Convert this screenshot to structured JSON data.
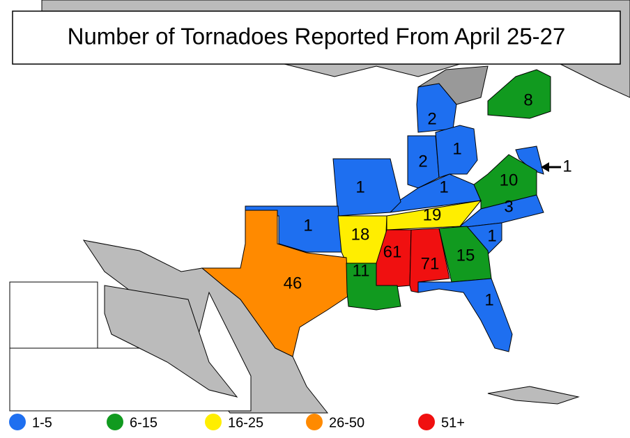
{
  "title": "Number of Tornadoes Reported From April 25-27",
  "states": [
    {
      "label": "2",
      "color": "#1e6ff0"
    },
    {
      "label": "8",
      "color": "#119a1f"
    },
    {
      "label": "2",
      "color": "#1e6ff0"
    },
    {
      "label": "1",
      "color": "#1e6ff0"
    },
    {
      "label": "1",
      "color": "#1e6ff0"
    },
    {
      "label": "1",
      "color": "#1e6ff0"
    },
    {
      "label": "10",
      "color": "#119a1f"
    },
    {
      "label": "1",
      "color": "#1e6ff0"
    },
    {
      "label": "19",
      "color": "#ffee00"
    },
    {
      "label": "3",
      "color": "#1e6ff0"
    },
    {
      "label": "1",
      "color": "#1e6ff0"
    },
    {
      "label": "18",
      "color": "#ffee00"
    },
    {
      "label": "1",
      "color": "#1e6ff0"
    },
    {
      "label": "61",
      "color": "#f01010"
    },
    {
      "label": "71",
      "color": "#f01010"
    },
    {
      "label": "15",
      "color": "#119a1f"
    },
    {
      "label": "46",
      "color": "#ff8a00"
    },
    {
      "label": "11",
      "color": "#119a1f"
    },
    {
      "label": "1",
      "color": "#1e6ff0"
    }
  ],
  "legend": [
    {
      "label": "1-5",
      "color": "#1e6ff0"
    },
    {
      "label": "6-15",
      "color": "#119a1f"
    },
    {
      "label": "16-25",
      "color": "#ffee00"
    },
    {
      "label": "26-50",
      "color": "#ff8a00"
    },
    {
      "label": "51+",
      "color": "#f01010"
    }
  ]
}
